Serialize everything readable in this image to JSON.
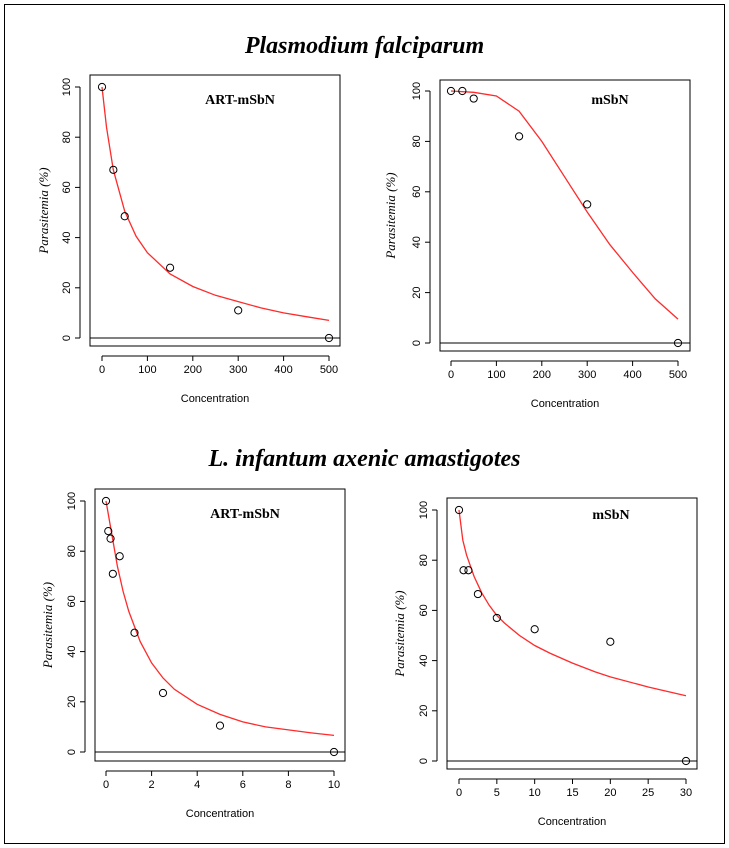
{
  "section_titles": [
    "Plasmodium falciparum",
    "L. infantum axenic amastigotes"
  ],
  "colors": {
    "fit_curve": "#ff2a2a",
    "points": "#000000",
    "axes": "#000000"
  },
  "chart_data": [
    {
      "type": "scatter",
      "panel_label": "ART-mSbN",
      "xlabel": "Concentration",
      "ylabel": "Parasitemia (%)",
      "xlim": [
        0,
        500
      ],
      "ylim": [
        0,
        100
      ],
      "xticks": [
        0,
        100,
        200,
        300,
        400,
        500
      ],
      "yticks": [
        0,
        20,
        40,
        60,
        80,
        100
      ],
      "baseline": 0,
      "points": {
        "x": [
          0,
          25,
          50,
          150,
          300,
          500
        ],
        "y": [
          100,
          67,
          48.5,
          28,
          11,
          0
        ]
      },
      "fit_curve": {
        "model": "hyperbolic",
        "x": [
          0,
          10,
          25,
          50,
          75,
          100,
          150,
          200,
          250,
          300,
          350,
          400,
          450,
          500
        ],
        "y": [
          100,
          84,
          67,
          50.5,
          40.5,
          34,
          25.5,
          20.5,
          17,
          14.5,
          12,
          10,
          8.5,
          7
        ]
      }
    },
    {
      "type": "scatter",
      "panel_label": "mSbN",
      "xlabel": "Concentration",
      "ylabel": "Parasitemia (%)",
      "xlim": [
        0,
        500
      ],
      "ylim": [
        0,
        100
      ],
      "xticks": [
        0,
        100,
        200,
        300,
        400,
        500
      ],
      "yticks": [
        0,
        20,
        40,
        60,
        80,
        100
      ],
      "baseline": 0,
      "points": {
        "x": [
          0,
          25,
          50,
          150,
          300,
          500
        ],
        "y": [
          100,
          100,
          97,
          82,
          55,
          0
        ]
      },
      "fit_curve": {
        "model": "sigmoid",
        "x": [
          0,
          50,
          100,
          150,
          200,
          250,
          300,
          350,
          400,
          450,
          500
        ],
        "y": [
          100,
          99.5,
          98,
          92,
          80,
          66,
          52,
          39,
          28,
          17.5,
          9.5
        ]
      }
    },
    {
      "type": "scatter",
      "panel_label": "ART-mSbN",
      "xlabel": "Concentration",
      "ylabel": "Parasitemia (%)",
      "xlim": [
        0,
        10
      ],
      "ylim": [
        0,
        100
      ],
      "xticks": [
        0,
        2,
        4,
        6,
        8,
        10
      ],
      "yticks": [
        0,
        20,
        40,
        60,
        80,
        100
      ],
      "baseline": 0,
      "points": {
        "x": [
          0,
          0.1,
          0.2,
          0.3,
          0.6,
          1.25,
          2.5,
          5,
          10
        ],
        "y": [
          100,
          88,
          85,
          71,
          78,
          47.5,
          23.5,
          10.5,
          0
        ]
      },
      "fit_curve": {
        "model": "hyperbolic",
        "x": [
          0,
          0.25,
          0.5,
          0.75,
          1,
          1.5,
          2,
          2.5,
          3,
          4,
          5,
          6,
          7,
          8,
          9,
          10
        ],
        "y": [
          100,
          87,
          74,
          64,
          56,
          44,
          35.5,
          29.5,
          25,
          19,
          15,
          12,
          10,
          8.8,
          7.6,
          6.6
        ]
      }
    },
    {
      "type": "scatter",
      "panel_label": "mSbN",
      "xlabel": "Concentration",
      "ylabel": "Parasitemia (%)",
      "xlim": [
        0,
        30
      ],
      "ylim": [
        0,
        100
      ],
      "xticks": [
        0,
        5,
        10,
        15,
        20,
        25,
        30
      ],
      "yticks": [
        0,
        20,
        40,
        60,
        80,
        100
      ],
      "baseline": 0,
      "points": {
        "x": [
          0,
          0.6,
          1.25,
          2.5,
          5,
          10,
          20,
          30
        ],
        "y": [
          100,
          76,
          76,
          66.5,
          57,
          52.5,
          47.5,
          0
        ]
      },
      "fit_curve": {
        "model": "hyperbolic",
        "x": [
          0,
          0.5,
          1,
          2,
          3,
          4,
          5,
          6,
          8,
          10,
          12,
          15,
          18,
          20,
          25,
          30
        ],
        "y": [
          100,
          88,
          82,
          73.5,
          67,
          62,
          58,
          55,
          50,
          46,
          43,
          39,
          35.5,
          33.5,
          29.5,
          26
        ]
      }
    }
  ]
}
